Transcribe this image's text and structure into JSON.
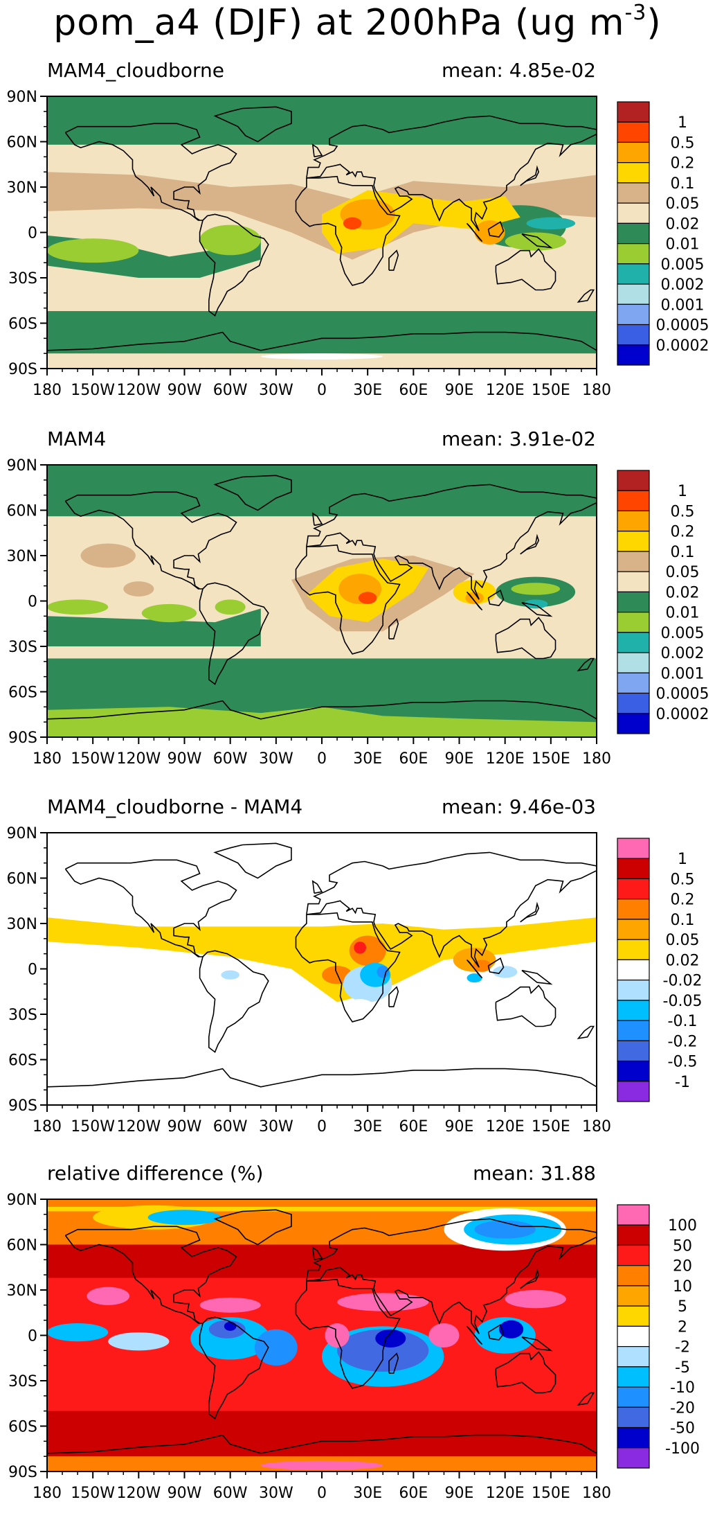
{
  "title": {
    "prefix": "pom_a4 (DJF) at 200hPa (ug m",
    "exponent": "-3",
    "suffix": ")"
  },
  "axes": {
    "lat_labels": [
      "90N",
      "60N",
      "30N",
      "0",
      "30S",
      "60S",
      "90S"
    ],
    "lon_labels": [
      "180",
      "150W",
      "120W",
      "90W",
      "60W",
      "30W",
      "0",
      "30E",
      "60E",
      "90E",
      "120E",
      "150E",
      "180"
    ]
  },
  "panels": [
    {
      "name": "MAM4_cloudborne",
      "mean_text": "mean: 4.85e-02",
      "background": "#f3e3c1",
      "colorbar": {
        "colors": [
          "#b22222",
          "#ff4500",
          "#ffa500",
          "#ffd700",
          "#d8b38a",
          "#f3e3c1",
          "#2e8b57",
          "#9acd32",
          "#20b2aa",
          "#b0e0e6",
          "#7fa6f0",
          "#3a5fe5",
          "#0000cd"
        ],
        "labels": [
          "1",
          "0.5",
          "0.2",
          "0.1",
          "0.05",
          "0.02",
          "0.01",
          "0.005",
          "0.002",
          "0.001",
          "0.0005",
          "0.0002"
        ]
      }
    },
    {
      "name": "MAM4",
      "mean_text": "mean: 3.91e-02",
      "background": "#f3e3c1",
      "colorbar": {
        "colors": [
          "#b22222",
          "#ff4500",
          "#ffa500",
          "#ffd700",
          "#d8b38a",
          "#f3e3c1",
          "#2e8b57",
          "#9acd32",
          "#20b2aa",
          "#b0e0e6",
          "#7fa6f0",
          "#3a5fe5",
          "#0000cd"
        ],
        "labels": [
          "1",
          "0.5",
          "0.2",
          "0.1",
          "0.05",
          "0.02",
          "0.01",
          "0.005",
          "0.002",
          "0.001",
          "0.0005",
          "0.0002"
        ]
      }
    },
    {
      "name": "MAM4_cloudborne - MAM4",
      "mean_text": "mean: 9.46e-03",
      "background": "#ffffff",
      "colorbar": {
        "colors": [
          "#ff69b4",
          "#cc0000",
          "#ff1a1a",
          "#ff7f00",
          "#ffa500",
          "#ffd700",
          "#ffffff",
          "#b0e0ff",
          "#00bfff",
          "#1e90ff",
          "#4169e1",
          "#0000cd",
          "#8a2be2"
        ],
        "labels": [
          "1",
          "0.5",
          "0.2",
          "0.1",
          "0.05",
          "0.02",
          "-0.02",
          "-0.05",
          "-0.1",
          "-0.2",
          "-0.5",
          "-1"
        ]
      }
    },
    {
      "name": "relative difference (%)",
      "mean_text": "mean: 31.88",
      "background": "#ff1a1a",
      "colorbar": {
        "colors": [
          "#ff69b4",
          "#cc0000",
          "#ff1a1a",
          "#ff7f00",
          "#ffa500",
          "#ffd700",
          "#ffffff",
          "#b0e0ff",
          "#00bfff",
          "#1e90ff",
          "#4169e1",
          "#0000cd",
          "#8a2be2"
        ],
        "labels": [
          "100",
          "50",
          "20",
          "10",
          "5",
          "2",
          "-2",
          "-5",
          "-10",
          "-20",
          "-50",
          "-100"
        ]
      }
    }
  ]
}
